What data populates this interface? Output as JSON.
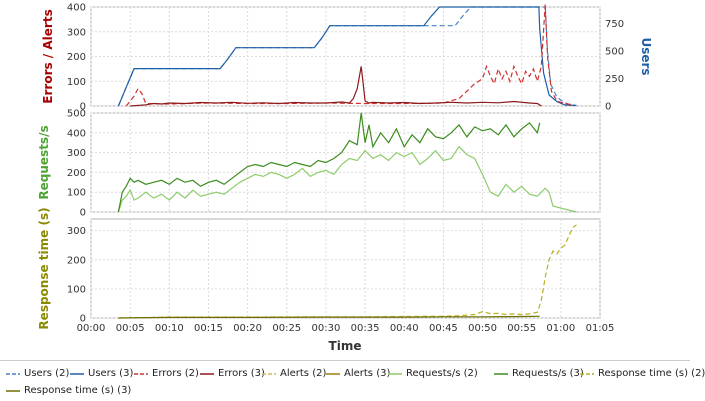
{
  "chart_data": [
    {
      "type": "line",
      "ylabel": "Errors / Alerts",
      "ylabel_color": "#aa0000",
      "ylim": [
        0,
        400
      ],
      "yticks": [
        "0",
        "100",
        "200",
        "300",
        "400"
      ],
      "y2label": "Users",
      "y2label_color": "#1f5fa8",
      "y2lim": [
        0,
        900
      ],
      "y2ticks": [
        "0",
        "250",
        "500",
        "750"
      ],
      "series": [
        {
          "name": "Users (2)",
          "axis": "right",
          "color": "#4a84c4",
          "dash": "5,3",
          "x": [
            3.5,
            4.5,
            5.5,
            16.5,
            17.5,
            18.5,
            28.5,
            29.5,
            30.5,
            46.5,
            47.5,
            48.5,
            58.0,
            58.3,
            58.7,
            59.5,
            60.5,
            61.2,
            62.0
          ],
          "y": [
            0,
            170,
            340,
            340,
            430,
            530,
            530,
            620,
            730,
            730,
            820,
            900,
            900,
            500,
            200,
            80,
            30,
            10,
            5
          ]
        },
        {
          "name": "Users (3)",
          "axis": "right",
          "color": "#1f5fa8",
          "dash": "",
          "x": [
            3.5,
            4.5,
            5.5,
            16.5,
            17.5,
            18.5,
            28.5,
            29.5,
            30.5,
            42.5,
            43.5,
            44.5,
            57.2,
            57.3,
            57.8,
            58.5,
            59.5,
            60.5,
            62.0
          ],
          "y": [
            0,
            170,
            340,
            340,
            430,
            530,
            530,
            620,
            730,
            730,
            820,
            900,
            900,
            700,
            300,
            100,
            40,
            10,
            5
          ]
        },
        {
          "name": "Errors (2)",
          "axis": "left",
          "color": "#d03030",
          "dash": "5,3",
          "x": [
            4.5,
            5.0,
            5.5,
            6.0,
            6.5,
            7.0,
            10,
            15,
            20,
            25,
            30,
            35,
            40,
            45,
            47,
            48,
            49,
            50,
            50.5,
            51,
            51.5,
            52,
            52.5,
            53,
            53.5,
            54,
            54.5,
            55,
            55.5,
            56,
            56.5,
            57,
            57.5,
            58,
            58.3,
            58.8,
            59.5,
            60.5,
            61.5
          ],
          "y": [
            0,
            20,
            40,
            70,
            50,
            10,
            8,
            12,
            10,
            10,
            12,
            10,
            10,
            12,
            30,
            60,
            90,
            110,
            160,
            120,
            90,
            150,
            110,
            140,
            100,
            160,
            120,
            90,
            140,
            120,
            150,
            100,
            160,
            410,
            200,
            60,
            20,
            10,
            5
          ]
        },
        {
          "name": "Errors (3)",
          "axis": "left",
          "color": "#8b1a1a",
          "dash": "",
          "x": [
            5,
            7,
            8,
            9,
            10,
            12,
            14,
            16,
            18,
            20,
            22,
            24,
            26,
            28,
            30,
            32,
            33,
            33.5,
            34,
            34.5,
            35,
            35.5,
            36,
            38,
            40,
            42,
            44,
            46,
            48,
            50,
            52,
            54,
            56,
            57,
            57.5
          ],
          "y": [
            0,
            5,
            10,
            8,
            12,
            10,
            14,
            12,
            15,
            11,
            13,
            10,
            14,
            12,
            12,
            16,
            12,
            30,
            70,
            160,
            20,
            12,
            15,
            12,
            14,
            10,
            12,
            15,
            12,
            15,
            13,
            18,
            12,
            10,
            0
          ]
        },
        {
          "name": "Alerts (2)",
          "axis": "left",
          "color": "#d4b85c",
          "dash": "5,3",
          "x": [],
          "y": []
        },
        {
          "name": "Alerts (3)",
          "axis": "left",
          "color": "#a07d10",
          "dash": "",
          "x": [],
          "y": []
        }
      ]
    },
    {
      "type": "line",
      "ylabel": "Requests/s",
      "ylabel_color": "#4ca232",
      "ylim": [
        0,
        500
      ],
      "yticks": [
        "0",
        "100",
        "200",
        "300",
        "400",
        "500"
      ],
      "series": [
        {
          "name": "Requests/s (2)",
          "color": "#8ccc6a",
          "dash": "",
          "x": [
            3.5,
            4,
            4.5,
            5,
            5.5,
            6,
            7,
            8,
            9,
            10,
            11,
            12,
            13,
            14,
            15,
            16,
            17,
            18,
            19,
            20,
            21,
            22,
            23,
            24,
            25,
            26,
            27,
            28,
            29,
            30,
            31,
            32,
            33,
            34,
            35,
            36,
            37,
            38,
            39,
            40,
            41,
            42,
            43,
            44,
            45,
            46,
            47,
            48,
            49,
            50,
            51,
            52,
            53,
            54,
            55,
            56,
            57,
            58,
            58.5,
            59,
            62
          ],
          "y": [
            0,
            60,
            80,
            110,
            60,
            70,
            100,
            70,
            90,
            60,
            100,
            70,
            110,
            80,
            90,
            100,
            90,
            120,
            150,
            170,
            190,
            180,
            200,
            190,
            170,
            190,
            220,
            180,
            200,
            210,
            190,
            240,
            270,
            260,
            310,
            270,
            290,
            260,
            300,
            280,
            300,
            240,
            270,
            310,
            260,
            270,
            330,
            290,
            270,
            190,
            100,
            80,
            140,
            100,
            130,
            90,
            80,
            120,
            100,
            30,
            0
          ]
        },
        {
          "name": "Requests/s (3)",
          "color": "#3c8c1c",
          "dash": "",
          "x": [
            3.5,
            4,
            4.5,
            5,
            5.5,
            6,
            7,
            8,
            9,
            10,
            11,
            12,
            13,
            14,
            15,
            16,
            17,
            18,
            19,
            20,
            21,
            22,
            23,
            24,
            25,
            26,
            27,
            28,
            29,
            30,
            31,
            32,
            33,
            34,
            34.5,
            35,
            35.5,
            36,
            37,
            38,
            39,
            40,
            41,
            42,
            43,
            44,
            45,
            46,
            47,
            48,
            49,
            50,
            51,
            52,
            53,
            54,
            55,
            56,
            57,
            57.3
          ],
          "y": [
            0,
            100,
            130,
            170,
            150,
            160,
            140,
            150,
            160,
            140,
            170,
            150,
            160,
            130,
            150,
            160,
            140,
            170,
            200,
            230,
            240,
            230,
            250,
            240,
            230,
            250,
            240,
            230,
            260,
            250,
            270,
            300,
            360,
            340,
            500,
            350,
            440,
            330,
            400,
            350,
            420,
            330,
            390,
            350,
            420,
            380,
            370,
            400,
            440,
            380,
            430,
            410,
            420,
            390,
            440,
            380,
            420,
            450,
            400,
            450
          ]
        }
      ]
    },
    {
      "type": "line",
      "ylabel": "Response time (s)",
      "ylabel_color": "#8a8a00",
      "ylim": [
        0,
        340
      ],
      "yticks": [
        "0",
        "100",
        "200",
        "300"
      ],
      "xlabel": "Time",
      "xticks": [
        "00:00",
        "00:05",
        "00:10",
        "00:15",
        "00:20",
        "00:25",
        "00:30",
        "00:35",
        "00:40",
        "00:45",
        "00:50",
        "00:55",
        "01:00",
        "01:05"
      ],
      "series": [
        {
          "name": "Response time (s) (2)",
          "color": "#b8b020",
          "dash": "5,3",
          "x": [
            3.5,
            10,
            20,
            30,
            35,
            40,
            45,
            47,
            48,
            49,
            50,
            51,
            52,
            53,
            54,
            55,
            56,
            57,
            57.5,
            58,
            58.5,
            59,
            59.5,
            60,
            60.5,
            61,
            61.5,
            62
          ],
          "y": [
            0,
            3,
            3,
            4,
            4,
            5,
            6,
            8,
            10,
            12,
            22,
            15,
            16,
            12,
            14,
            12,
            14,
            20,
            60,
            140,
            200,
            230,
            220,
            240,
            250,
            280,
            310,
            320
          ]
        },
        {
          "name": "Response time (s) (3)",
          "color": "#6e6e00",
          "dash": "",
          "x": [
            3.5,
            10,
            20,
            30,
            35,
            40,
            45,
            50,
            55,
            57,
            57.3
          ],
          "y": [
            0,
            2,
            2,
            3,
            3,
            3,
            4,
            4,
            5,
            6,
            6
          ]
        }
      ]
    }
  ]
}
